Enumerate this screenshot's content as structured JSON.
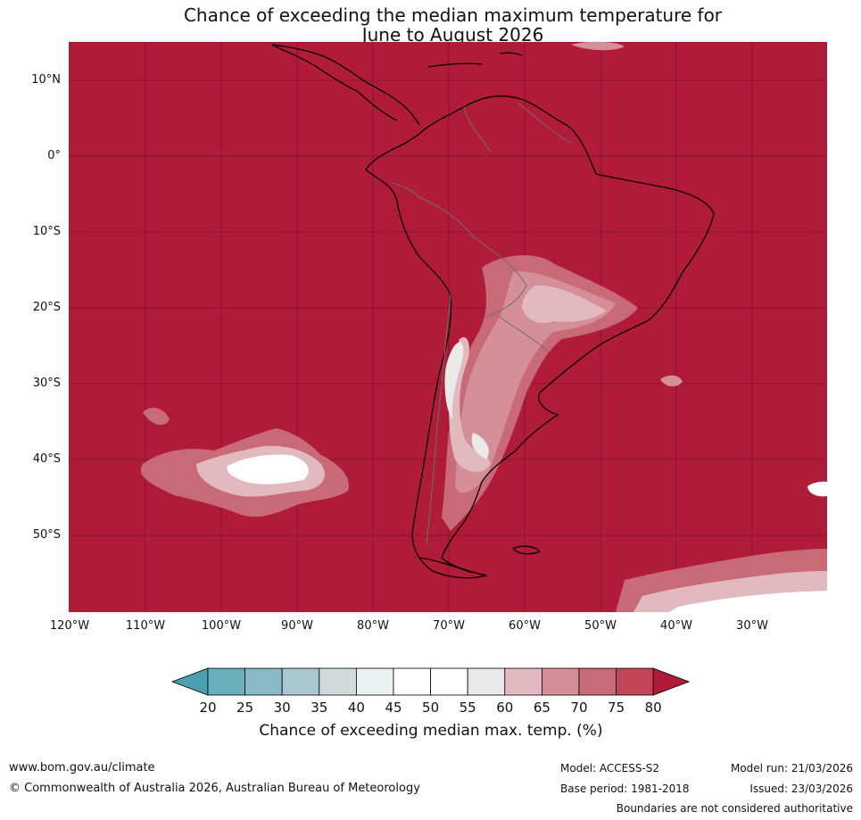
{
  "title": {
    "line1": "Chance of exceeding the median maximum temperature for",
    "line2": "June to August 2026"
  },
  "map": {
    "region": "South America",
    "lat_labels": [
      "10°N",
      "0°",
      "10°S",
      "20°S",
      "30°S",
      "40°S",
      "50°S"
    ],
    "lon_labels": [
      "120°W",
      "110°W",
      "100°W",
      "90°W",
      "80°W",
      "70°W",
      "60°W",
      "50°W",
      "40°W",
      "30°W"
    ],
    "background_category": "80+",
    "features": [
      "coastlines",
      "country-borders",
      "graticule"
    ]
  },
  "colorbar": {
    "ticks": [
      "20",
      "25",
      "30",
      "35",
      "40",
      "45",
      "50",
      "55",
      "60",
      "65",
      "70",
      "75",
      "80"
    ],
    "colors": [
      "#4b9fae",
      "#6aafbe",
      "#89b9c5",
      "#a9c8ce",
      "#d0dadd",
      "#e9f0f2",
      "#ffffff",
      "#ffffff",
      "#ebe9ea",
      "#e2b9bf",
      "#d48f99",
      "#c86b76",
      "#c04555",
      "#b01c38"
    ],
    "label": "Chance of exceeding median max. temp. (%)"
  },
  "footer": {
    "website": "www.bom.gov.au/climate",
    "copyright": "© Commonwealth of Australia 2026, Australian Bureau of Meteorology",
    "model": "Model: ACCESS-S2",
    "base_period": "Base period: 1981-2018",
    "model_run": "Model run: 21/03/2026",
    "issued": "Issued: 23/03/2026",
    "disclaimer": "Boundaries are not considered authoritative"
  }
}
